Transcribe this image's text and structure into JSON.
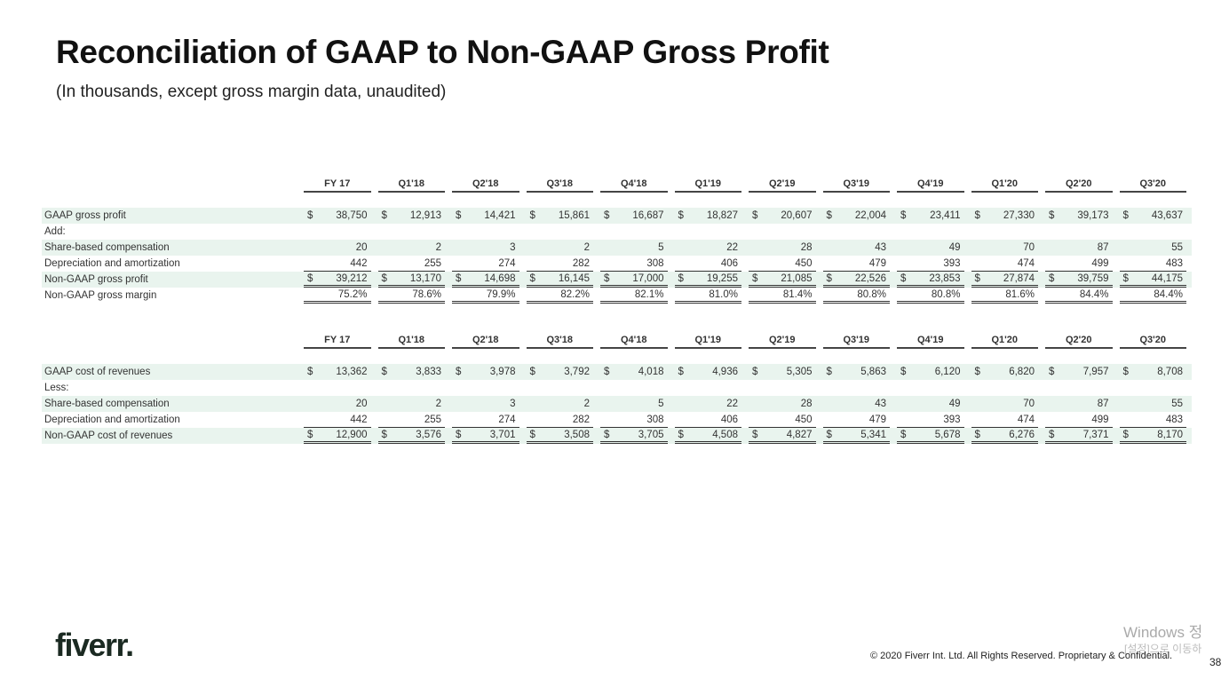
{
  "header": {
    "title": "Reconciliation of GAAP to Non-GAAP Gross Profit",
    "subtitle": "(In thousands, except gross margin data, unaudited)"
  },
  "tables": [
    {
      "currency_symbol": "$",
      "columns": [
        "FY 17",
        "Q1'18",
        "Q2'18",
        "Q3'18",
        "Q4'18",
        "Q1'19",
        "Q2'19",
        "Q3'19",
        "Q4'19",
        "Q1'20",
        "Q2'20",
        "Q3'20"
      ],
      "rows": [
        {
          "label": "GAAP gross profit",
          "currency": true,
          "shaded": true,
          "values": [
            "38,750",
            "12,913",
            "14,421",
            "15,861",
            "16,687",
            "18,827",
            "20,607",
            "22,004",
            "23,411",
            "27,330",
            "39,173",
            "43,637"
          ]
        },
        {
          "label": "Add:",
          "values": []
        },
        {
          "label": "Share-based compensation",
          "shaded": true,
          "values": [
            "20",
            "2",
            "3",
            "2",
            "5",
            "22",
            "28",
            "43",
            "49",
            "70",
            "87",
            "55"
          ]
        },
        {
          "label": "Depreciation and amortization",
          "underline": "single",
          "values": [
            "442",
            "255",
            "274",
            "282",
            "308",
            "406",
            "450",
            "479",
            "393",
            "474",
            "499",
            "483"
          ]
        },
        {
          "label": "Non-GAAP gross profit",
          "currency": true,
          "shaded": true,
          "underline": "double",
          "values": [
            "39,212",
            "13,170",
            "14,698",
            "16,145",
            "17,000",
            "19,255",
            "21,085",
            "22,526",
            "23,853",
            "27,874",
            "39,759",
            "44,175"
          ]
        },
        {
          "label": "Non-GAAP gross margin",
          "underline": "double",
          "values": [
            "75.2%",
            "78.6%",
            "79.9%",
            "82.2%",
            "82.1%",
            "81.0%",
            "81.4%",
            "80.8%",
            "80.8%",
            "81.6%",
            "84.4%",
            "84.4%"
          ]
        }
      ]
    },
    {
      "currency_symbol": "$",
      "columns": [
        "FY 17",
        "Q1'18",
        "Q2'18",
        "Q3'18",
        "Q4'18",
        "Q1'19",
        "Q2'19",
        "Q3'19",
        "Q4'19",
        "Q1'20",
        "Q2'20",
        "Q3'20"
      ],
      "rows": [
        {
          "label": "GAAP cost of revenues",
          "currency": true,
          "shaded": true,
          "values": [
            "13,362",
            "3,833",
            "3,978",
            "3,792",
            "4,018",
            "4,936",
            "5,305",
            "5,863",
            "6,120",
            "6,820",
            "7,957",
            "8,708"
          ]
        },
        {
          "label": "Less:",
          "values": []
        },
        {
          "label": "Share-based compensation",
          "shaded": true,
          "values": [
            "20",
            "2",
            "3",
            "2",
            "5",
            "22",
            "28",
            "43",
            "49",
            "70",
            "87",
            "55"
          ]
        },
        {
          "label": "Depreciation and amortization",
          "underline": "single",
          "values": [
            "442",
            "255",
            "274",
            "282",
            "308",
            "406",
            "450",
            "479",
            "393",
            "474",
            "499",
            "483"
          ]
        },
        {
          "label": "Non-GAAP cost of revenues",
          "currency": true,
          "shaded": true,
          "underline": "double",
          "values": [
            "12,900",
            "3,576",
            "3,701",
            "3,508",
            "3,705",
            "4,508",
            "4,827",
            "5,341",
            "5,678",
            "6,276",
            "7,371",
            "8,170"
          ]
        }
      ]
    }
  ],
  "footer": {
    "logo": "fiverr.",
    "copyright": "© 2020 Fiverr Int. Ltd. All Rights Reserved. Proprietary & Confidential.",
    "page_number": "38"
  },
  "watermark": {
    "line1": "Windows 정",
    "line2": "[설정]으로 이동하"
  }
}
